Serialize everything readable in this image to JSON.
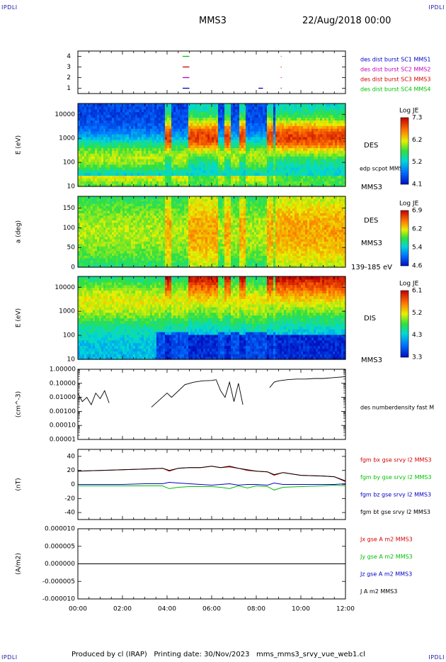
{
  "corner_label": "IPDLI",
  "header": {
    "spacecraft": "MMS3",
    "datetime": "22/Aug/2018 00:00"
  },
  "footer": {
    "text": "Produced by cl (IRAP)   Printing date: 30/Nov/2023   mms_mms3_srvy_vue_web1.cl"
  },
  "time_axis": {
    "start_hour": 0,
    "end_hour": 12,
    "ticks": [
      "00:00",
      "02:00",
      "04:00",
      "06:00",
      "08:00",
      "10:00",
      "12:00"
    ]
  },
  "colors": {
    "red": "#d40000",
    "green": "#00c000",
    "blue": "#0000c8",
    "magenta": "#c000c0",
    "black": "#000000"
  },
  "colorbar_label": "Log JE",
  "chart_data": [
    {
      "type": "scatter",
      "name": "burst-flags",
      "ylim": [
        0.5,
        4.5
      ],
      "y_ticks": [
        "1",
        "2",
        "3",
        "4"
      ],
      "legend": [
        "des dist burst SC1 MMS1",
        "des dist burst SC2 MMS2",
        "des dist burst SC3 MMS3",
        "des dist burst SC4 MMS4"
      ],
      "legend_colors": [
        "#0000c8",
        "#c000c0",
        "#d40000",
        "#00c000"
      ],
      "segments": [
        {
          "sc": 4,
          "t0": 4.7,
          "t1": 5.0
        },
        {
          "sc": 3,
          "t0": 4.7,
          "t1": 5.0
        },
        {
          "sc": 2,
          "t0": 4.7,
          "t1": 5.0
        },
        {
          "sc": 1,
          "t0": 4.7,
          "t1": 5.0
        },
        {
          "sc": 1,
          "t0": 8.1,
          "t1": 8.3
        },
        {
          "sc": 4,
          "t0": 9.1,
          "t1": 9.12
        },
        {
          "sc": 3,
          "t0": 9.1,
          "t1": 9.12
        },
        {
          "sc": 2,
          "t0": 9.1,
          "t1": 9.12
        },
        {
          "sc": 1,
          "t0": 9.1,
          "t1": 9.12
        }
      ]
    },
    {
      "type": "heatmap",
      "name": "des-energy",
      "ylabel": "E (eV)",
      "y_ticks": [
        "10",
        "100",
        "1000",
        "10000"
      ],
      "label": "DES",
      "sub_label": "MMS3",
      "extra_label": "edp scpot MMS3",
      "clim": [
        4.1,
        7.3
      ],
      "cbar_ticks": [
        "7.3",
        "6.2",
        "5.2",
        "4.1"
      ]
    },
    {
      "type": "heatmap",
      "name": "des-pitch",
      "ylabel": "a (deg)",
      "y_ticks": [
        "0",
        "50",
        "100",
        "150"
      ],
      "label": "DES",
      "sub_label": "MMS3",
      "extra_label": "139-185 eV",
      "clim": [
        4.6,
        6.9
      ],
      "cbar_ticks": [
        "6.9",
        "6.2",
        "5.4",
        "4.6"
      ]
    },
    {
      "type": "heatmap",
      "name": "dis-energy",
      "ylabel": "E (eV)",
      "y_ticks": [
        "10",
        "100",
        "1000",
        "10000"
      ],
      "label": "DIS",
      "sub_label": "MMS3",
      "clim": [
        3.3,
        6.1
      ],
      "cbar_ticks": [
        "6.1",
        "5.2",
        "4.3",
        "3.3"
      ]
    },
    {
      "type": "line",
      "name": "number-density",
      "ylabel": "(cm^-3)",
      "y_ticks": [
        "1.00000",
        "0.10000",
        "0.01000",
        "0.00100",
        "0.00010",
        "0.00001"
      ],
      "legend": [
        "des numberdensity fast M"
      ],
      "x": [
        0.0,
        0.2,
        0.4,
        0.6,
        0.8,
        1.0,
        1.2,
        1.4,
        3.3,
        4.0,
        4.2,
        4.8,
        5.2,
        5.6,
        6.0,
        6.2,
        6.4,
        6.6,
        6.8,
        7.0,
        7.2,
        7.4,
        8.6,
        8.8,
        9.0,
        9.4,
        9.8,
        10.2,
        10.6,
        11.0,
        11.4,
        11.8,
        12.0
      ],
      "y": [
        0.02,
        0.005,
        0.01,
        0.003,
        0.02,
        0.008,
        0.03,
        0.004,
        0.002,
        0.02,
        0.01,
        0.08,
        0.12,
        0.15,
        0.16,
        0.18,
        0.03,
        0.01,
        0.12,
        0.005,
        0.1,
        0.003,
        0.05,
        0.12,
        0.15,
        0.18,
        0.2,
        0.2,
        0.22,
        0.22,
        0.25,
        0.28,
        0.3
      ]
    },
    {
      "type": "line",
      "name": "magnetic-field",
      "ylabel": "(nT)",
      "ylim": [
        -50,
        50
      ],
      "y_ticks": [
        "40",
        "20",
        "0",
        "-20",
        "-40"
      ],
      "legend": [
        "fgm bx gse srvy l2 MMS3",
        "fgm by gse srvy l2 MMS3",
        "fgm bz gse srvy l2 MMS3",
        "fgm bt gse srvy l2 MMS3"
      ],
      "legend_colors": [
        "#d40000",
        "#00c000",
        "#0000c8",
        "#000000"
      ],
      "x": [
        0,
        1,
        2,
        3,
        3.8,
        4.1,
        4.5,
        5,
        5.5,
        6,
        6.4,
        6.8,
        7.2,
        7.6,
        8.0,
        8.5,
        8.8,
        9.2,
        10,
        11,
        11.5,
        12
      ],
      "series": [
        {
          "name": "fgm bx gse srvy l2 MMS3",
          "values": [
            19,
            20,
            21,
            22,
            23,
            19,
            23,
            24,
            24,
            26,
            24,
            25,
            23,
            20,
            19,
            18,
            13,
            17,
            13,
            12,
            11,
            4
          ]
        },
        {
          "name": "fgm by gse srvy l2 MMS3",
          "values": [
            -2,
            -2,
            -2,
            -2,
            -2,
            -6,
            -4,
            -3,
            -3,
            -3,
            -4,
            -6,
            -2,
            -5,
            -2,
            -3,
            -8,
            -4,
            -3,
            -2,
            -1,
            -2
          ]
        },
        {
          "name": "fgm bz gse srvy l2 MMS3",
          "values": [
            0,
            0,
            0,
            1,
            1,
            3,
            2,
            1,
            0,
            -1,
            0,
            1,
            -1,
            0,
            0,
            -1,
            2,
            0,
            0,
            0,
            0,
            1
          ]
        },
        {
          "name": "fgm bt gse srvy l2 MMS3",
          "values": [
            19,
            20,
            21,
            22,
            23,
            20,
            23,
            24,
            24,
            26,
            24,
            26,
            23,
            21,
            19,
            18,
            14,
            17,
            13,
            12,
            11,
            5
          ]
        }
      ]
    },
    {
      "type": "line",
      "name": "current-density",
      "ylabel": "(A/m2)",
      "ylim": [
        -1e-05,
        1e-05
      ],
      "y_ticks": [
        "0.000010",
        "0.000005",
        "0.000000",
        "-0.000005",
        "-0.000010"
      ],
      "legend": [
        "Jx gse A m2 MMS3",
        "Jy gse A m2 MMS3",
        "Jz gse A m2 MMS3",
        "J A m2 MMS3"
      ],
      "legend_colors": [
        "#d40000",
        "#00c000",
        "#0000c8",
        "#000000"
      ],
      "x": [
        0,
        12
      ],
      "series": [
        {
          "name": "J A m2 MMS3",
          "values": [
            0,
            0
          ]
        }
      ]
    }
  ]
}
